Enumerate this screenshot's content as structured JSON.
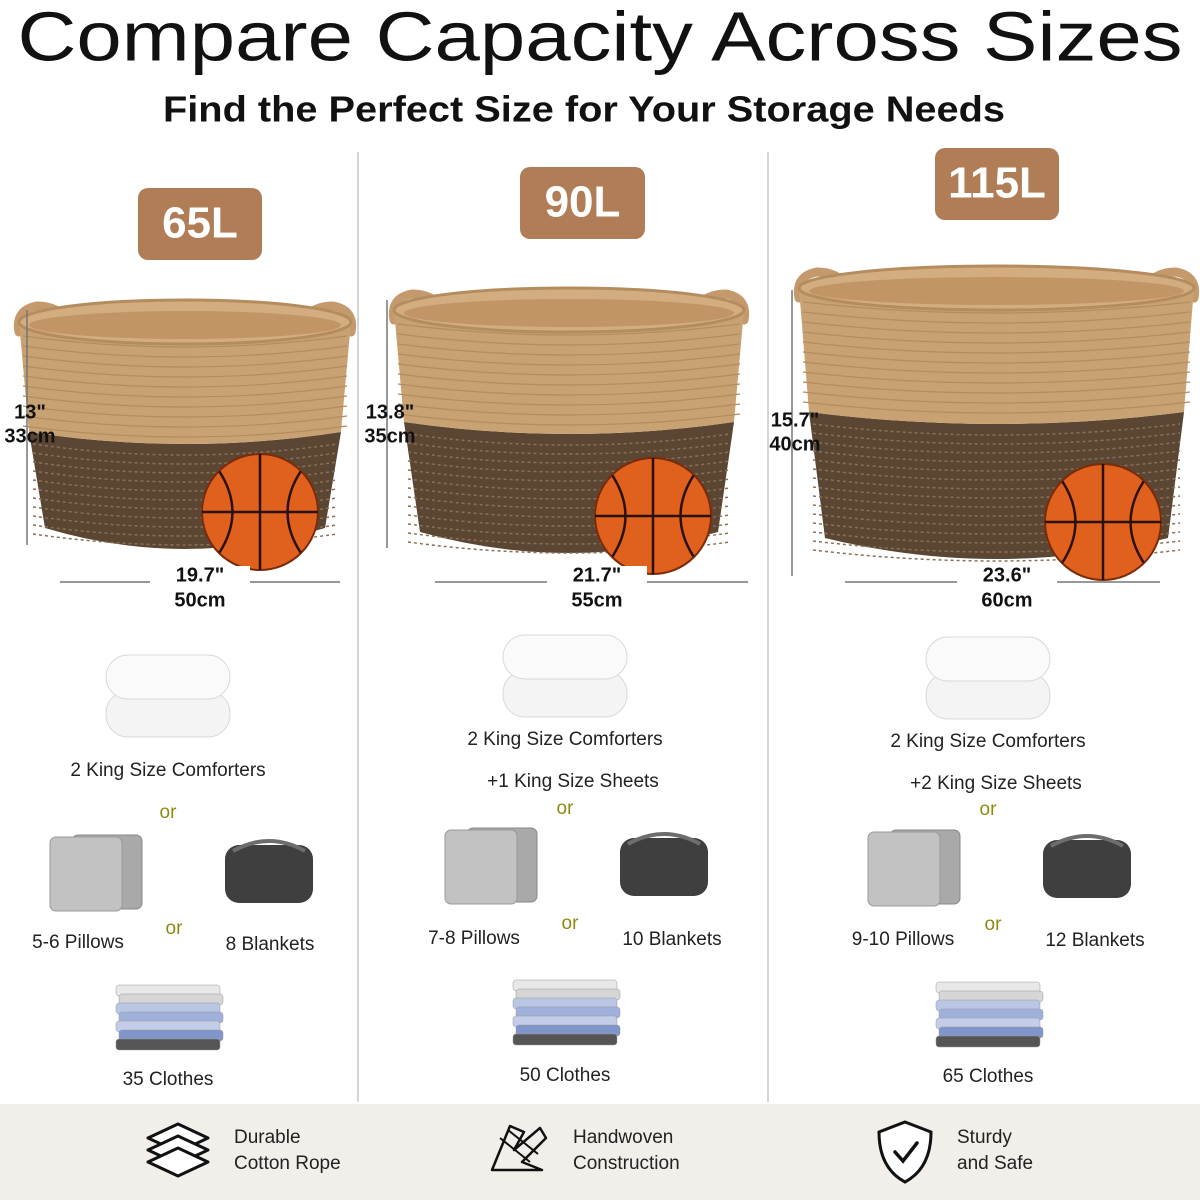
{
  "header": {
    "title": "Compare Capacity Across Sizes",
    "subtitle": "Find the Perfect Size for Your Storage Needs"
  },
  "sizes": [
    {
      "capacity": "65L",
      "height_in": "13\"",
      "height_cm": "33cm",
      "width_in": "19.7\"",
      "width_cm": "50cm",
      "comforters": "2 King Size Comforters",
      "or_1": "or",
      "pillows": "5-6 Pillows",
      "or_2": "or",
      "blankets": "8 Blankets",
      "clothes": "35 Clothes"
    },
    {
      "capacity": "90L",
      "height_in": "13.8\"",
      "height_cm": "35cm",
      "width_in": "21.7\"",
      "width_cm": "55cm",
      "comforters": "2 King Size Comforters",
      "sheets": "+1 King Size Sheets",
      "or_1": "or",
      "pillows": "7-8 Pillows",
      "or_2": "or",
      "blankets": "10 Blankets",
      "clothes": "50 Clothes"
    },
    {
      "capacity": "115L",
      "height_in": "15.7\"",
      "height_cm": "40cm",
      "width_in": "23.6\"",
      "width_cm": "60cm",
      "comforters": "2 King Size Comforters",
      "sheets": "+2 King Size Sheets",
      "or_1": "or",
      "pillows": "9-10 Pillows",
      "or_2": "or",
      "blankets": "12 Blankets",
      "clothes": "65 Clothes"
    }
  ],
  "features": [
    {
      "lines": [
        "Durable",
        "Cotton Rope"
      ]
    },
    {
      "lines": [
        "Handwoven",
        "Construction"
      ]
    },
    {
      "lines": [
        "Sturdy",
        "and Safe"
      ]
    }
  ]
}
